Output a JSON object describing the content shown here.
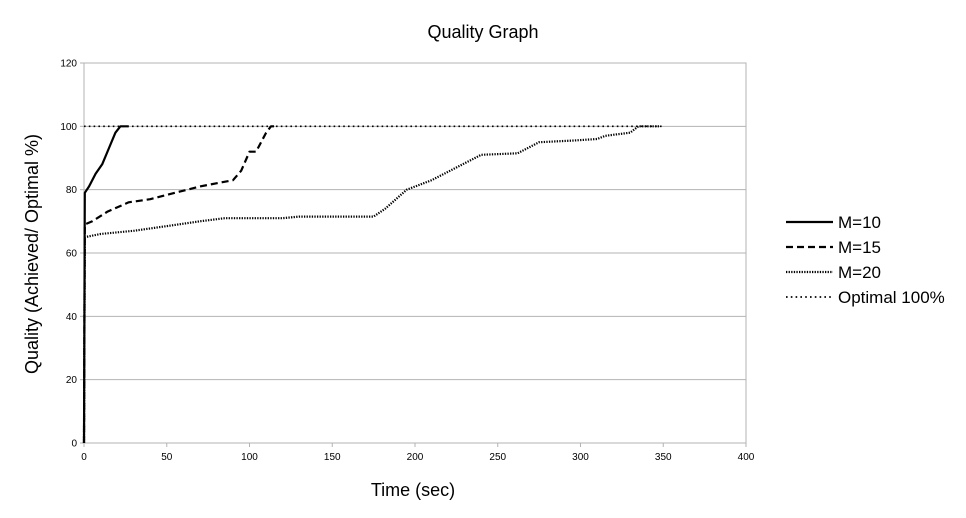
{
  "chart_data": {
    "type": "line",
    "title": "Quality Graph",
    "xlabel": "Time (sec)",
    "ylabel": "Quality (Achieved/ Optimal %)",
    "xlim": [
      0,
      400
    ],
    "ylim": [
      0,
      120
    ],
    "xticks": [
      0,
      50,
      100,
      150,
      200,
      250,
      300,
      350,
      400
    ],
    "yticks": [
      0,
      20,
      40,
      60,
      80,
      100,
      120
    ],
    "grid": "horizontal",
    "legend": "right",
    "series": [
      {
        "name": "M=10",
        "style": "solid",
        "color": "#000000",
        "points": [
          [
            0,
            0
          ],
          [
            0.5,
            79
          ],
          [
            3,
            81
          ],
          [
            7,
            85
          ],
          [
            11,
            88
          ],
          [
            15,
            93
          ],
          [
            19,
            98
          ],
          [
            22,
            100
          ],
          [
            27,
            100
          ]
        ]
      },
      {
        "name": "M=15",
        "style": "dashed",
        "color": "#000000",
        "points": [
          [
            0,
            0
          ],
          [
            0.5,
            69
          ],
          [
            5,
            70
          ],
          [
            14,
            73
          ],
          [
            27,
            76
          ],
          [
            40,
            77
          ],
          [
            55,
            79
          ],
          [
            70,
            81
          ],
          [
            80,
            82
          ],
          [
            90,
            83
          ],
          [
            95,
            86
          ],
          [
            100,
            92
          ],
          [
            104,
            92
          ],
          [
            110,
            98
          ],
          [
            113,
            100
          ],
          [
            117,
            100
          ]
        ]
      },
      {
        "name": "M=20",
        "style": "dotted",
        "color": "#000000",
        "points": [
          [
            0,
            0
          ],
          [
            0.5,
            65
          ],
          [
            10,
            66
          ],
          [
            30,
            67
          ],
          [
            50,
            68.5
          ],
          [
            70,
            70
          ],
          [
            85,
            71
          ],
          [
            120,
            71
          ],
          [
            130,
            71.5
          ],
          [
            175,
            71.5
          ],
          [
            182,
            74
          ],
          [
            195,
            80
          ],
          [
            210,
            83
          ],
          [
            225,
            87
          ],
          [
            240,
            91
          ],
          [
            262,
            91.5
          ],
          [
            275,
            95
          ],
          [
            295,
            95.5
          ],
          [
            310,
            96
          ],
          [
            315,
            97
          ],
          [
            330,
            98
          ],
          [
            335,
            100
          ],
          [
            348,
            100
          ]
        ]
      },
      {
        "name": "Optimal 100%",
        "style": "dotted-sparse",
        "color": "#000000",
        "points": [
          [
            0,
            100
          ],
          [
            350,
            100
          ]
        ]
      }
    ]
  }
}
